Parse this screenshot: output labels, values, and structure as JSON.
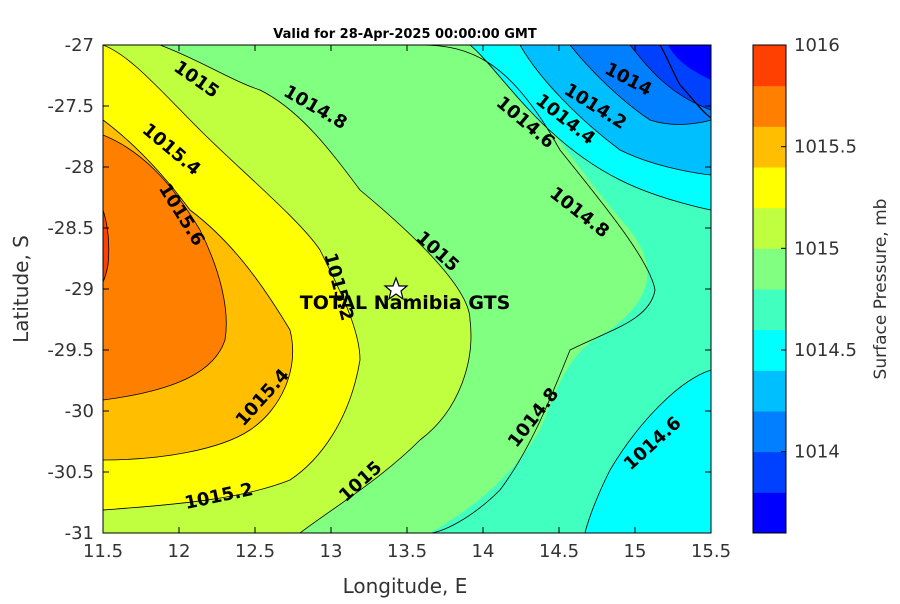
{
  "chart_data": {
    "type": "contour",
    "title": "Valid for 28-Apr-2025 00:00:00 GMT",
    "xlabel": "Longitude, E",
    "ylabel": "Latitude, S",
    "xlim": [
      11.5,
      15.5
    ],
    "ylim": [
      -31,
      -27
    ],
    "x_ticks": [
      "11.5",
      "12",
      "12.5",
      "13",
      "13.5",
      "14",
      "14.5",
      "15",
      "15.5"
    ],
    "y_ticks": [
      "-27",
      "-27.5",
      "-28",
      "-28.5",
      "-29",
      "-29.5",
      "-30",
      "-30.5",
      "-31"
    ],
    "colorbar": {
      "label": "Surface Pressure, mb",
      "range": [
        1013.6,
        1016
      ],
      "ticks": [
        "1016",
        "1015.5",
        "1015",
        "1014.5",
        "1014"
      ],
      "levels": [
        1013.6,
        1013.8,
        1014,
        1014.2,
        1014.4,
        1014.6,
        1014.8,
        1015,
        1015.2,
        1015.4,
        1015.6,
        1015.8,
        1016
      ],
      "colors": [
        "#0000ff",
        "#0040ff",
        "#0080ff",
        "#00bfff",
        "#00ffff",
        "#40ffbf",
        "#80ff80",
        "#bfff40",
        "#ffff00",
        "#ffbf00",
        "#ff8000",
        "#ff4000",
        "#ff0000"
      ]
    },
    "contour_labels": [
      "1015",
      "1014.8",
      "1014",
      "1014.2",
      "1014.4",
      "1014.6",
      "1015.4",
      "1014.8",
      "1015.6",
      "1015",
      "1015.2",
      "1015.4",
      "1014.8",
      "1014.6",
      "1015.2",
      "1015"
    ],
    "station": {
      "name": "TOTAL Namibia GTS",
      "lon": 13.43,
      "lat": -29.0
    }
  }
}
